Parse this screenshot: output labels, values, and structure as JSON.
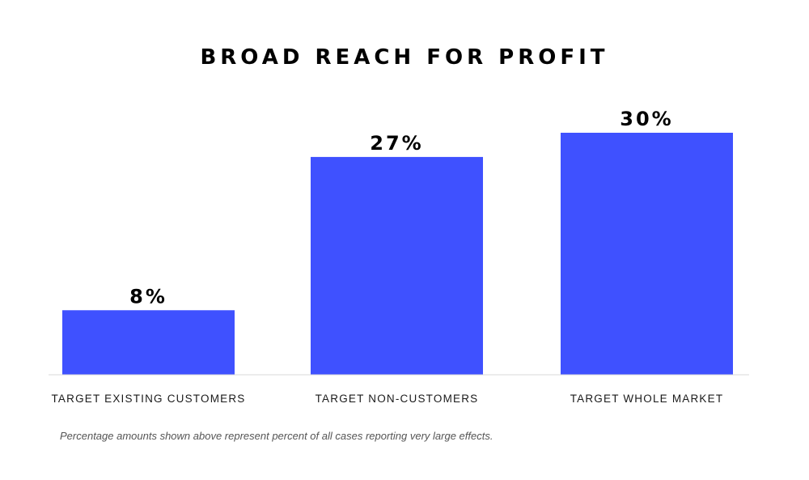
{
  "chart_data": {
    "type": "bar",
    "title": "BROAD REACH FOR PROFIT",
    "categories": [
      "TARGET EXISTING CUSTOMERS",
      "TARGET NON-CUSTOMERS",
      "TARGET WHOLE MARKET"
    ],
    "values": [
      8,
      27,
      30
    ],
    "value_labels": [
      "8%",
      "27%",
      "30%"
    ],
    "ylim": [
      0,
      30
    ],
    "xlabel": "",
    "ylabel": "",
    "grid": false,
    "bar_color": "#3f51ff",
    "footnote": "Percentage amounts shown above represent percent of all cases reporting very large effects."
  }
}
